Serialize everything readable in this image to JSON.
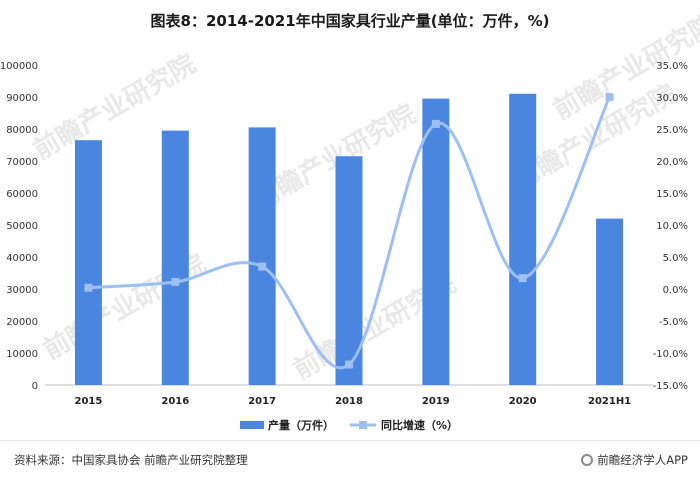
{
  "title": "图表8：2014-2021年中国家具行业产量(单位：万件，%)",
  "watermark_text": "前瞻产业研究院",
  "footer": {
    "source": "资料来源：中国家具协会 前瞻产业研究院整理",
    "brand": "前瞻经济学人APP"
  },
  "colors": {
    "bar": "#4a86e0",
    "line": "#9dbff2",
    "marker": "#9dbff2"
  },
  "chart_data": {
    "type": "bar",
    "categories": [
      "2015",
      "2016",
      "2017",
      "2018",
      "2019",
      "2020",
      "2021H1"
    ],
    "series": [
      {
        "name": "产量（万件）",
        "type": "bar",
        "axis": "left",
        "values": [
          76500,
          79500,
          80500,
          71500,
          89500,
          91000,
          52000
        ]
      },
      {
        "name": "同比增速（%）",
        "type": "line",
        "axis": "right",
        "values": [
          0.2,
          1.1,
          3.5,
          -11.8,
          25.8,
          1.7,
          30.0
        ]
      }
    ],
    "y_left": {
      "min": 0,
      "max": 100000,
      "step": 10000,
      "ticks": [
        "0",
        "10000",
        "20000",
        "30000",
        "40000",
        "50000",
        "60000",
        "70000",
        "80000",
        "90000",
        "100000"
      ]
    },
    "y_right": {
      "min": -15,
      "max": 35,
      "step": 5,
      "ticks": [
        "-15.0%",
        "-10.0%",
        "-5.0%",
        "0.0%",
        "5.0%",
        "10.0%",
        "15.0%",
        "20.0%",
        "25.0%",
        "30.0%",
        "35.0%"
      ]
    },
    "grid": false,
    "legend_position": "bottom-center"
  }
}
